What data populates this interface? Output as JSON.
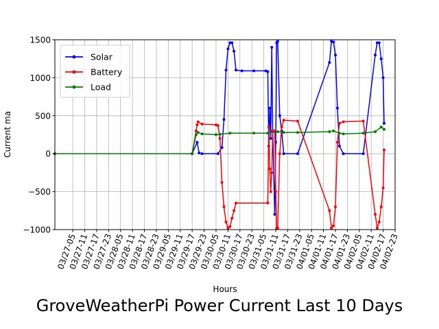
{
  "chart_data": {
    "type": "line",
    "title": "GroveWeatherPi Power Current Last 10 Days",
    "xlabel": "Hours",
    "ylabel": "Current ma",
    "ylim": [
      -1000,
      1500
    ],
    "yticks": [
      -1000,
      -500,
      0,
      500,
      1000,
      1500
    ],
    "ytick_labels": [
      "−1000",
      "−500",
      "0",
      "500",
      "1000",
      "1500"
    ],
    "xlim": [
      "2017-03-26T20:00",
      "2017-04-02T23:00"
    ],
    "xticks": [
      "2017-03-27T05:00",
      "2017-03-27T11:00",
      "2017-03-27T17:00",
      "2017-03-27T23:00",
      "2017-03-28T05:00",
      "2017-03-28T11:00",
      "2017-03-28T17:00",
      "2017-03-28T23:00",
      "2017-03-29T05:00",
      "2017-03-29T11:00",
      "2017-03-29T17:00",
      "2017-03-29T23:00",
      "2017-03-30T05:00",
      "2017-03-30T11:00",
      "2017-03-30T17:00",
      "2017-03-30T23:00",
      "2017-03-31T05:00",
      "2017-03-31T11:00",
      "2017-03-31T17:00",
      "2017-03-31T23:00",
      "2017-04-01T05:00",
      "2017-04-01T11:00",
      "2017-04-01T17:00",
      "2017-04-01T23:00",
      "2017-04-02T05:00",
      "2017-04-02T11:00",
      "2017-04-02T17:00",
      "2017-04-02T23:00"
    ],
    "xtick_labels": [
      "03/27-05",
      "03/27-11",
      "03/27-17",
      "03/27-23",
      "03/28-05",
      "03/28-11",
      "03/28-17",
      "03/28-23",
      "03/29-05",
      "03/29-11",
      "03/29-17",
      "03/29-23",
      "03/30-05",
      "03/30-11",
      "03/30-17",
      "03/30-23",
      "03/31-05",
      "03/31-11",
      "03/31-17",
      "03/31-23",
      "04/01-05",
      "04/01-11",
      "04/01-17",
      "04/01-23",
      "04/02-05",
      "04/02-11",
      "04/02-17",
      "04/02-23"
    ],
    "grid": true,
    "legend_position": "top-left",
    "series": [
      {
        "name": "Solar",
        "color": "#0000ff",
        "points": [
          [
            "2017-03-26T20:00",
            0
          ],
          [
            "2017-03-29T17:00",
            0
          ],
          [
            "2017-03-29T19:30",
            150
          ],
          [
            "2017-03-29T20:30",
            10
          ],
          [
            "2017-03-29T22:00",
            0
          ],
          [
            "2017-03-30T06:00",
            0
          ],
          [
            "2017-03-30T08:00",
            80
          ],
          [
            "2017-03-30T09:00",
            450
          ],
          [
            "2017-03-30T10:00",
            1100
          ],
          [
            "2017-03-30T11:00",
            1380
          ],
          [
            "2017-03-30T12:00",
            1460
          ],
          [
            "2017-03-30T13:00",
            1460
          ],
          [
            "2017-03-30T14:00",
            1350
          ],
          [
            "2017-03-30T15:00",
            1100
          ],
          [
            "2017-03-30T18:00",
            1090
          ],
          [
            "2017-03-31T00:00",
            1090
          ],
          [
            "2017-03-31T06:00",
            1090
          ],
          [
            "2017-03-31T07:00",
            1080
          ],
          [
            "2017-03-31T07:30",
            100
          ],
          [
            "2017-03-31T08:00",
            600
          ],
          [
            "2017-03-31T08:30",
            200
          ],
          [
            "2017-03-31T09:00",
            1400
          ],
          [
            "2017-03-31T09:30",
            300
          ],
          [
            "2017-03-31T10:30",
            -800
          ],
          [
            "2017-03-31T11:00",
            150
          ],
          [
            "2017-03-31T11:30",
            1460
          ],
          [
            "2017-03-31T12:00",
            1480
          ],
          [
            "2017-03-31T13:00",
            500
          ],
          [
            "2017-03-31T14:00",
            300
          ],
          [
            "2017-03-31T15:00",
            0
          ],
          [
            "2017-03-31T22:00",
            0
          ],
          [
            "2017-04-01T14:00",
            1200
          ],
          [
            "2017-04-01T15:00",
            1480
          ],
          [
            "2017-04-01T16:00",
            1470
          ],
          [
            "2017-04-01T17:00",
            1300
          ],
          [
            "2017-04-01T18:00",
            600
          ],
          [
            "2017-04-01T19:00",
            100
          ],
          [
            "2017-04-01T21:00",
            0
          ],
          [
            "2017-04-02T07:00",
            0
          ],
          [
            "2017-04-02T13:00",
            1300
          ],
          [
            "2017-04-02T14:00",
            1460
          ],
          [
            "2017-04-02T15:00",
            1460
          ],
          [
            "2017-04-02T16:00",
            1250
          ],
          [
            "2017-04-02T17:00",
            1000
          ],
          [
            "2017-04-02T17:30",
            400
          ]
        ]
      },
      {
        "name": "Battery",
        "color": "#ff0000",
        "points": [
          [
            "2017-03-26T20:00",
            0
          ],
          [
            "2017-03-29T17:00",
            0
          ],
          [
            "2017-03-29T19:00",
            300
          ],
          [
            "2017-03-29T19:30",
            380
          ],
          [
            "2017-03-29T20:00",
            420
          ],
          [
            "2017-03-29T22:00",
            390
          ],
          [
            "2017-03-30T05:00",
            380
          ],
          [
            "2017-03-30T06:00",
            370
          ],
          [
            "2017-03-30T07:00",
            200
          ],
          [
            "2017-03-30T08:00",
            -380
          ],
          [
            "2017-03-30T09:00",
            -700
          ],
          [
            "2017-03-30T10:00",
            -900
          ],
          [
            "2017-03-30T11:00",
            -980
          ],
          [
            "2017-03-30T12:00",
            -960
          ],
          [
            "2017-03-30T13:00",
            -850
          ],
          [
            "2017-03-30T14:00",
            -750
          ],
          [
            "2017-03-30T15:00",
            -650
          ],
          [
            "2017-03-31T07:00",
            -650
          ],
          [
            "2017-03-31T07:30",
            350
          ],
          [
            "2017-03-31T08:00",
            -200
          ],
          [
            "2017-03-31T08:30",
            -500
          ],
          [
            "2017-03-31T09:00",
            -250
          ],
          [
            "2017-03-31T09:30",
            300
          ],
          [
            "2017-03-31T10:30",
            300
          ],
          [
            "2017-03-31T11:00",
            -500
          ],
          [
            "2017-03-31T11:30",
            -980
          ],
          [
            "2017-03-31T12:00",
            -980
          ],
          [
            "2017-03-31T13:00",
            0
          ],
          [
            "2017-03-31T14:00",
            350
          ],
          [
            "2017-03-31T15:00",
            440
          ],
          [
            "2017-03-31T22:00",
            430
          ],
          [
            "2017-04-01T14:00",
            -750
          ],
          [
            "2017-04-01T15:00",
            -980
          ],
          [
            "2017-04-01T16:00",
            -950
          ],
          [
            "2017-04-01T17:00",
            -700
          ],
          [
            "2017-04-01T18:00",
            150
          ],
          [
            "2017-04-01T19:00",
            400
          ],
          [
            "2017-04-01T21:00",
            420
          ],
          [
            "2017-04-02T07:00",
            430
          ],
          [
            "2017-04-02T13:00",
            -800
          ],
          [
            "2017-04-02T14:00",
            -980
          ],
          [
            "2017-04-02T15:00",
            -900
          ],
          [
            "2017-04-02T16:00",
            -700
          ],
          [
            "2017-04-02T17:00",
            -450
          ],
          [
            "2017-04-02T17:30",
            50
          ]
        ]
      },
      {
        "name": "Load",
        "color": "#008000",
        "points": [
          [
            "2017-03-26T20:00",
            0
          ],
          [
            "2017-03-29T17:00",
            0
          ],
          [
            "2017-03-29T19:00",
            250
          ],
          [
            "2017-03-29T20:00",
            280
          ],
          [
            "2017-03-29T22:00",
            260
          ],
          [
            "2017-03-30T05:00",
            250
          ],
          [
            "2017-03-30T07:00",
            255
          ],
          [
            "2017-03-30T12:00",
            270
          ],
          [
            "2017-03-31T00:00",
            270
          ],
          [
            "2017-03-31T07:00",
            270
          ],
          [
            "2017-03-31T12:00",
            290
          ],
          [
            "2017-03-31T15:00",
            280
          ],
          [
            "2017-03-31T22:00",
            280
          ],
          [
            "2017-04-01T14:00",
            290
          ],
          [
            "2017-04-01T16:00",
            300
          ],
          [
            "2017-04-01T19:00",
            270
          ],
          [
            "2017-04-01T21:00",
            260
          ],
          [
            "2017-04-02T07:00",
            270
          ],
          [
            "2017-04-02T13:00",
            290
          ],
          [
            "2017-04-02T16:00",
            350
          ],
          [
            "2017-04-02T17:30",
            320
          ]
        ]
      }
    ]
  }
}
